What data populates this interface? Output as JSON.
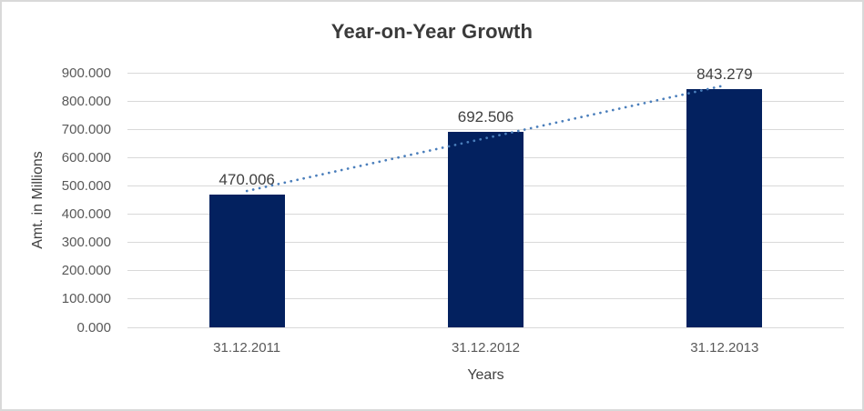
{
  "frame": {
    "background": "#ffffff",
    "border_color": "#d9d9d9"
  },
  "chart_data": {
    "type": "bar",
    "title": "Year-on-Year Growth",
    "xlabel": "Years",
    "ylabel": "Amt. in Millions",
    "categories": [
      "31.12.2011",
      "31.12.2012",
      "31.12.2013"
    ],
    "series": [
      {
        "name": "Amt. in Millions",
        "values": [
          470.006,
          692.506,
          843.279
        ],
        "value_labels": [
          "470.006",
          "692.506",
          "843.279"
        ]
      }
    ],
    "ylim": [
      0,
      900
    ],
    "ytick_step": 100,
    "ytick_labels": [
      "0.000",
      "100.000",
      "200.000",
      "300.000",
      "400.000",
      "500.000",
      "600.000",
      "700.000",
      "800.000",
      "900.000"
    ],
    "grid": true,
    "legend_position": "none",
    "trendline": {
      "type": "linear",
      "style": "dotted",
      "color": "#4a7ebb"
    },
    "colors": {
      "bar": "#03215f",
      "gridline": "#d9d9d9",
      "title_text": "#3a3a3a",
      "tick_text": "#595959",
      "data_label_text": "#404040"
    }
  }
}
